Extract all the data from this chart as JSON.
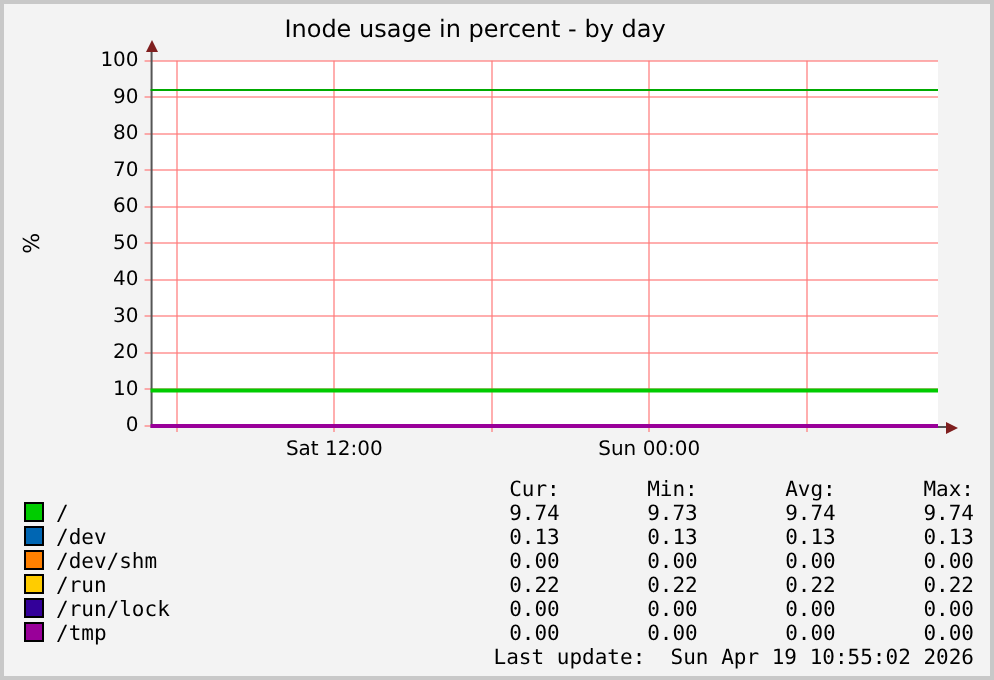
{
  "chart_data": {
    "type": "line",
    "title": "Inode usage in percent - by day",
    "ylabel": "%",
    "x": [
      "2026-04-18T05:00",
      "2026-04-19T11:00"
    ],
    "series": [
      {
        "name": "/",
        "color": "#00cc00",
        "values": [
          9.74,
          9.74
        ]
      },
      {
        "name": "/dev",
        "color": "#0066b3",
        "values": [
          null,
          null
        ]
      },
      {
        "name": "/dev/shm",
        "color": "#ff8000",
        "values": [
          null,
          null
        ]
      },
      {
        "name": "/run",
        "color": "#ffcc00",
        "values": [
          null,
          null
        ]
      },
      {
        "name": "/run/lock",
        "color": "#330099",
        "values": [
          null,
          null
        ]
      },
      {
        "name": "/tmp",
        "color": "#990099",
        "values": [
          0,
          0
        ]
      }
    ],
    "xlim": [
      "2026-04-18T05:00",
      "2026-04-19T11:00"
    ],
    "xticks": [
      {
        "value": "2026-04-18T06:00",
        "label": null
      },
      {
        "value": "2026-04-18T12:00",
        "label": "Sat 12:00"
      },
      {
        "value": "2026-04-18T18:00",
        "label": null
      },
      {
        "value": "2026-04-19T00:00",
        "label": "Sun 00:00"
      },
      {
        "value": "2026-04-19T06:00",
        "label": null
      }
    ],
    "ylim": [
      0,
      100
    ],
    "yticks": [
      0,
      10,
      20,
      30,
      40,
      50,
      60,
      70,
      80,
      90,
      100
    ],
    "ref_lines": [
      {
        "axis": "y",
        "value": 92,
        "color": "#00aa00"
      }
    ],
    "grid": true,
    "legend": "bottom",
    "marker": "none",
    "line_style": "solid",
    "annotations": [
      "Cur:",
      "Min:",
      "Avg:",
      "Max:",
      "9.74",
      "9.73",
      "9.74",
      "9.74",
      "0.13",
      "0.13",
      "0.13",
      "0.13",
      "0.00",
      "0.00",
      "0.00",
      "0.00",
      "0.22",
      "0.22",
      "0.22",
      "0.22",
      "0.00",
      "0.00",
      "0.00",
      "0.00",
      "0.00",
      "0.00",
      "0.00",
      "0.00",
      "Last update:  Sun Apr 19 10:55:02 2026"
    ]
  }
}
